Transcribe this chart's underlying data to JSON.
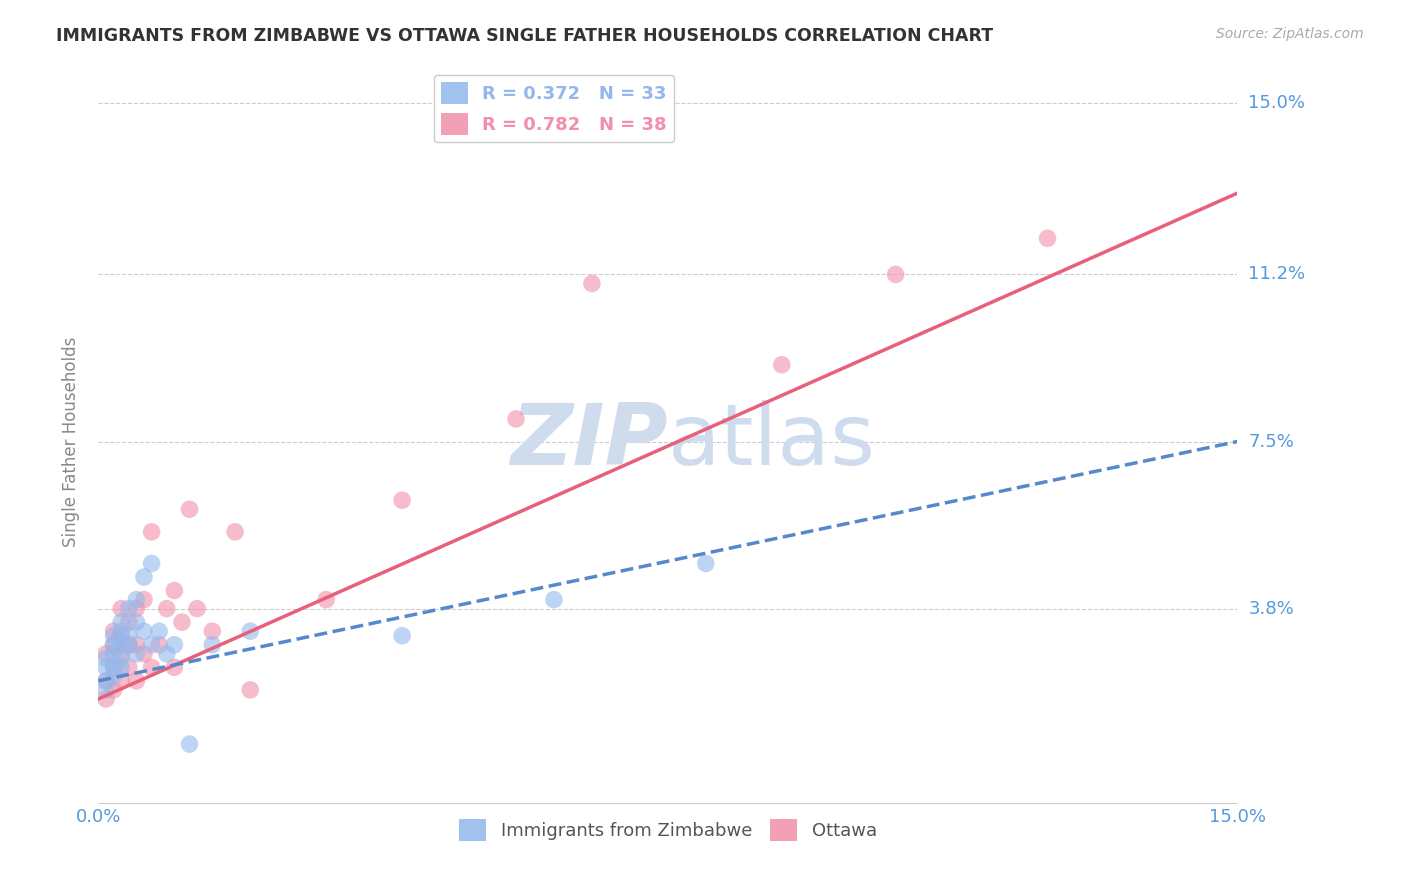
{
  "title": "IMMIGRANTS FROM ZIMBABWE VS OTTAWA SINGLE FATHER HOUSEHOLDS CORRELATION CHART",
  "source": "Source: ZipAtlas.com",
  "ylabel": "Single Father Households",
  "xmin": 0.0,
  "xmax": 0.15,
  "ymin": -0.005,
  "ymax": 0.155,
  "ytick_vals": [
    0.038,
    0.075,
    0.112,
    0.15
  ],
  "ytick_labels": [
    "3.8%",
    "7.5%",
    "11.2%",
    "15.0%"
  ],
  "xtick_vals": [
    0.0,
    0.15
  ],
  "xtick_labels": [
    "0.0%",
    "15.0%"
  ],
  "legend_entries": [
    {
      "label": "R = 0.372   N = 33",
      "color": "#92b8ec"
    },
    {
      "label": "R = 0.782   N = 38",
      "color": "#f090aa"
    }
  ],
  "legend_labels_bottom": [
    "Immigrants from Zimbabwe",
    "Ottawa"
  ],
  "color_zimbabwe": "#92b8ec",
  "color_ottawa": "#f090aa",
  "line_color_zimbabwe": "#5588cc",
  "line_color_ottawa": "#e8607a",
  "background_color": "#ffffff",
  "watermark_color": "#cfdcee",
  "grid_color": "#cccccc",
  "title_color": "#333333",
  "axis_label_color": "#888888",
  "right_label_color": "#5599dd",
  "zimbabwe_scatter_x": [
    0.001,
    0.001,
    0.001,
    0.001,
    0.002,
    0.002,
    0.002,
    0.002,
    0.002,
    0.003,
    0.003,
    0.003,
    0.003,
    0.003,
    0.004,
    0.004,
    0.004,
    0.005,
    0.005,
    0.005,
    0.006,
    0.006,
    0.007,
    0.007,
    0.008,
    0.009,
    0.01,
    0.012,
    0.015,
    0.02,
    0.04,
    0.06,
    0.08
  ],
  "zimbabwe_scatter_y": [
    0.02,
    0.025,
    0.027,
    0.022,
    0.023,
    0.028,
    0.03,
    0.025,
    0.032,
    0.027,
    0.03,
    0.033,
    0.025,
    0.035,
    0.03,
    0.038,
    0.032,
    0.028,
    0.035,
    0.04,
    0.033,
    0.045,
    0.03,
    0.048,
    0.033,
    0.028,
    0.03,
    0.008,
    0.03,
    0.033,
    0.032,
    0.04,
    0.048
  ],
  "ottawa_scatter_x": [
    0.001,
    0.001,
    0.001,
    0.002,
    0.002,
    0.002,
    0.002,
    0.003,
    0.003,
    0.003,
    0.003,
    0.004,
    0.004,
    0.004,
    0.005,
    0.005,
    0.005,
    0.006,
    0.006,
    0.007,
    0.007,
    0.008,
    0.009,
    0.01,
    0.01,
    0.011,
    0.012,
    0.013,
    0.015,
    0.018,
    0.02,
    0.03,
    0.04,
    0.055,
    0.065,
    0.09,
    0.105,
    0.125
  ],
  "ottawa_scatter_y": [
    0.018,
    0.022,
    0.028,
    0.02,
    0.025,
    0.03,
    0.033,
    0.022,
    0.028,
    0.032,
    0.038,
    0.025,
    0.03,
    0.035,
    0.022,
    0.03,
    0.038,
    0.028,
    0.04,
    0.025,
    0.055,
    0.03,
    0.038,
    0.025,
    0.042,
    0.035,
    0.06,
    0.038,
    0.033,
    0.055,
    0.02,
    0.04,
    0.062,
    0.08,
    0.11,
    0.092,
    0.112,
    0.12
  ],
  "zimbabwe_line_x": [
    0.0,
    0.15
  ],
  "zimbabwe_line_y": [
    0.022,
    0.075
  ],
  "ottawa_line_x": [
    0.0,
    0.15
  ],
  "ottawa_line_y": [
    0.018,
    0.13
  ]
}
